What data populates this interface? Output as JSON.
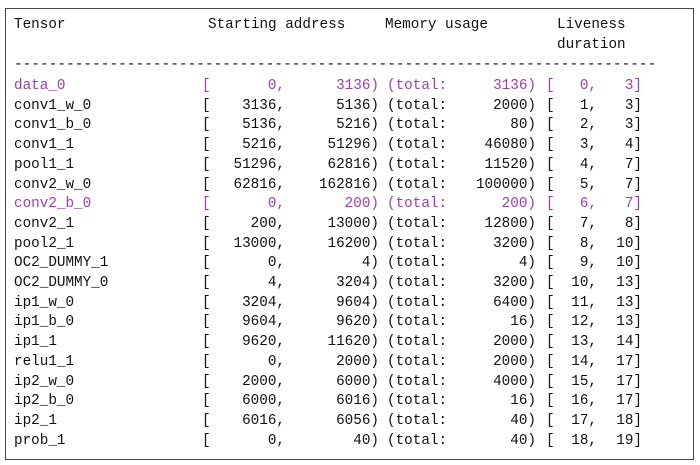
{
  "header": {
    "tensor": "Tensor",
    "starting_address": "Starting address",
    "memory_usage": "Memory usage",
    "liveness": "Liveness",
    "duration": "duration",
    "separator": "--------------------------------------------------------------------------"
  },
  "tokens": {
    "open_range": "[",
    "comma": ",",
    "close_paren": ")",
    "total_label": "(total:",
    "close_bracket": "]"
  },
  "colors": {
    "highlight": "#9b3fb0",
    "text": "#111111"
  },
  "rows": [
    {
      "name": "data_0",
      "start": "0",
      "end": "3136",
      "total": "3136",
      "live_start": "0",
      "live_end": "3",
      "highlight": true
    },
    {
      "name": "conv1_w_0",
      "start": "3136",
      "end": "5136",
      "total": "2000",
      "live_start": "1",
      "live_end": "3",
      "highlight": false
    },
    {
      "name": "conv1_b_0",
      "start": "5136",
      "end": "5216",
      "total": "80",
      "live_start": "2",
      "live_end": "3",
      "highlight": false
    },
    {
      "name": "conv1_1",
      "start": "5216",
      "end": "51296",
      "total": "46080",
      "live_start": "3",
      "live_end": "4",
      "highlight": false
    },
    {
      "name": "pool1_1",
      "start": "51296",
      "end": "62816",
      "total": "11520",
      "live_start": "4",
      "live_end": "7",
      "highlight": false
    },
    {
      "name": "conv2_w_0",
      "start": "62816",
      "end": "162816",
      "total": "100000",
      "live_start": "5",
      "live_end": "7",
      "highlight": false
    },
    {
      "name": "conv2_b_0",
      "start": "0",
      "end": "200",
      "total": "200",
      "live_start": "6",
      "live_end": "7",
      "highlight": true
    },
    {
      "name": "conv2_1",
      "start": "200",
      "end": "13000",
      "total": "12800",
      "live_start": "7",
      "live_end": "8",
      "highlight": false
    },
    {
      "name": "pool2_1",
      "start": "13000",
      "end": "16200",
      "total": "3200",
      "live_start": "8",
      "live_end": "10",
      "highlight": false
    },
    {
      "name": "OC2_DUMMY_1",
      "start": "0",
      "end": "4",
      "total": "4",
      "live_start": "9",
      "live_end": "10",
      "highlight": false
    },
    {
      "name": "OC2_DUMMY_0",
      "start": "4",
      "end": "3204",
      "total": "3200",
      "live_start": "10",
      "live_end": "13",
      "highlight": false
    },
    {
      "name": "ip1_w_0",
      "start": "3204",
      "end": "9604",
      "total": "6400",
      "live_start": "11",
      "live_end": "13",
      "highlight": false
    },
    {
      "name": "ip1_b_0",
      "start": "9604",
      "end": "9620",
      "total": "16",
      "live_start": "12",
      "live_end": "13",
      "highlight": false
    },
    {
      "name": "ip1_1",
      "start": "9620",
      "end": "11620",
      "total": "2000",
      "live_start": "13",
      "live_end": "14",
      "highlight": false
    },
    {
      "name": "relu1_1",
      "start": "0",
      "end": "2000",
      "total": "2000",
      "live_start": "14",
      "live_end": "17",
      "highlight": false
    },
    {
      "name": "ip2_w_0",
      "start": "2000",
      "end": "6000",
      "total": "4000",
      "live_start": "15",
      "live_end": "17",
      "highlight": false
    },
    {
      "name": "ip2_b_0",
      "start": "6000",
      "end": "6016",
      "total": "16",
      "live_start": "16",
      "live_end": "17",
      "highlight": false
    },
    {
      "name": "ip2_1",
      "start": "6016",
      "end": "6056",
      "total": "40",
      "live_start": "17",
      "live_end": "18",
      "highlight": false
    },
    {
      "name": "prob_1",
      "start": "0",
      "end": "40",
      "total": "40",
      "live_start": "18",
      "live_end": "19",
      "highlight": false
    }
  ]
}
